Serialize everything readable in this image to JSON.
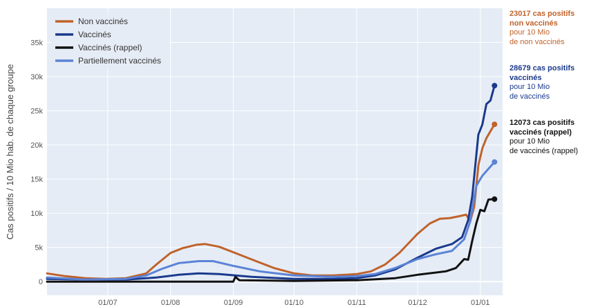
{
  "chart_data": {
    "type": "line",
    "ylabel": "Cas positifs / 10 Mio hab. de chaque groupe",
    "ylim": [
      -2000,
      40000
    ],
    "yticks": [
      {
        "value": 0,
        "label": "0"
      },
      {
        "value": 5000,
        "label": "5k"
      },
      {
        "value": 10000,
        "label": "10k"
      },
      {
        "value": 15000,
        "label": "15k"
      },
      {
        "value": 20000,
        "label": "20k"
      },
      {
        "value": 25000,
        "label": "25k"
      },
      {
        "value": 30000,
        "label": "30k"
      },
      {
        "value": 35000,
        "label": "35k"
      }
    ],
    "xlim": [
      "2021-06-01",
      "2022-01-12"
    ],
    "xticks": [
      {
        "value": "2021-07-01",
        "label": "01/07"
      },
      {
        "value": "2021-08-01",
        "label": "01/08"
      },
      {
        "value": "2021-09-01",
        "label": "01/09"
      },
      {
        "value": "2021-10-01",
        "label": "01/10"
      },
      {
        "value": "2021-11-01",
        "label": "01/11"
      },
      {
        "value": "2021-12-01",
        "label": "01/12"
      },
      {
        "value": "2022-01-01",
        "label": "01/01"
      }
    ],
    "grid": true,
    "legend_position": "top-left",
    "background": "#e5ecf6",
    "series": [
      {
        "name": "Non vaccinés",
        "color": "#c0622a",
        "points": [
          [
            "2021-06-01",
            1200
          ],
          [
            "2021-06-10",
            800
          ],
          [
            "2021-06-20",
            500
          ],
          [
            "2021-06-30",
            400
          ],
          [
            "2021-07-10",
            500
          ],
          [
            "2021-07-20",
            1200
          ],
          [
            "2021-07-25",
            2500
          ],
          [
            "2021-08-01",
            4200
          ],
          [
            "2021-08-07",
            4900
          ],
          [
            "2021-08-14",
            5400
          ],
          [
            "2021-08-18",
            5500
          ],
          [
            "2021-08-25",
            5100
          ],
          [
            "2021-09-01",
            4300
          ],
          [
            "2021-09-07",
            3600
          ],
          [
            "2021-09-14",
            2800
          ],
          [
            "2021-09-21",
            2000
          ],
          [
            "2021-10-01",
            1200
          ],
          [
            "2021-10-10",
            900
          ],
          [
            "2021-10-20",
            900
          ],
          [
            "2021-11-01",
            1100
          ],
          [
            "2021-11-08",
            1500
          ],
          [
            "2021-11-15",
            2500
          ],
          [
            "2021-11-22",
            4200
          ],
          [
            "2021-12-01",
            7000
          ],
          [
            "2021-12-07",
            8500
          ],
          [
            "2021-12-12",
            9200
          ],
          [
            "2021-12-17",
            9300
          ],
          [
            "2021-12-22",
            9600
          ],
          [
            "2021-12-25",
            9800
          ],
          [
            "2021-12-27",
            8800
          ],
          [
            "2021-12-29",
            11000
          ],
          [
            "2021-12-31",
            17000
          ],
          [
            "2022-01-02",
            19500
          ],
          [
            "2022-01-04",
            21000
          ],
          [
            "2022-01-06",
            22000
          ],
          [
            "2022-01-08",
            23017
          ]
        ]
      },
      {
        "name": "Vaccinés",
        "color": "#1a3a8c",
        "points": [
          [
            "2021-06-01",
            400
          ],
          [
            "2021-06-20",
            300
          ],
          [
            "2021-07-10",
            300
          ],
          [
            "2021-07-25",
            600
          ],
          [
            "2021-08-05",
            1000
          ],
          [
            "2021-08-15",
            1200
          ],
          [
            "2021-08-25",
            1100
          ],
          [
            "2021-09-10",
            700
          ],
          [
            "2021-10-01",
            400
          ],
          [
            "2021-10-20",
            400
          ],
          [
            "2021-11-01",
            500
          ],
          [
            "2021-11-10",
            900
          ],
          [
            "2021-11-20",
            1800
          ],
          [
            "2021-12-01",
            3500
          ],
          [
            "2021-12-10",
            4800
          ],
          [
            "2021-12-18",
            5500
          ],
          [
            "2021-12-23",
            6500
          ],
          [
            "2021-12-26",
            9000
          ],
          [
            "2021-12-28",
            12500
          ],
          [
            "2021-12-31",
            21500
          ],
          [
            "2022-01-02",
            23000
          ],
          [
            "2022-01-04",
            26000
          ],
          [
            "2022-01-06",
            26500
          ],
          [
            "2022-01-08",
            28679
          ]
        ]
      },
      {
        "name": "Vaccinés (rappel)",
        "color": "#111111",
        "points": [
          [
            "2021-06-01",
            0
          ],
          [
            "2021-07-01",
            0
          ],
          [
            "2021-08-01",
            0
          ],
          [
            "2021-09-01",
            0
          ],
          [
            "2021-09-02",
            700
          ],
          [
            "2021-09-04",
            200
          ],
          [
            "2021-10-01",
            100
          ],
          [
            "2021-11-01",
            200
          ],
          [
            "2021-11-20",
            500
          ],
          [
            "2021-12-01",
            1000
          ],
          [
            "2021-12-15",
            1500
          ],
          [
            "2021-12-20",
            2000
          ],
          [
            "2021-12-24",
            3300
          ],
          [
            "2021-12-26",
            3200
          ],
          [
            "2021-12-28",
            6000
          ],
          [
            "2021-12-30",
            8500
          ],
          [
            "2022-01-01",
            10500
          ],
          [
            "2022-01-03",
            10300
          ],
          [
            "2022-01-05",
            12000
          ],
          [
            "2022-01-08",
            12073
          ]
        ]
      },
      {
        "name": "Partiellement vaccinés",
        "color": "#5b83d6",
        "points": [
          [
            "2021-06-01",
            600
          ],
          [
            "2021-06-20",
            300
          ],
          [
            "2021-07-10",
            400
          ],
          [
            "2021-07-20",
            900
          ],
          [
            "2021-07-28",
            1900
          ],
          [
            "2021-08-05",
            2700
          ],
          [
            "2021-08-15",
            3000
          ],
          [
            "2021-08-22",
            3000
          ],
          [
            "2021-09-01",
            2300
          ],
          [
            "2021-09-14",
            1500
          ],
          [
            "2021-10-01",
            900
          ],
          [
            "2021-10-20",
            700
          ],
          [
            "2021-11-01",
            800
          ],
          [
            "2021-11-10",
            1100
          ],
          [
            "2021-11-20",
            2000
          ],
          [
            "2021-12-01",
            3300
          ],
          [
            "2021-12-10",
            4000
          ],
          [
            "2021-12-18",
            4500
          ],
          [
            "2021-12-24",
            6200
          ],
          [
            "2021-12-27",
            8800
          ],
          [
            "2021-12-30",
            14000
          ],
          [
            "2022-01-02",
            15500
          ],
          [
            "2022-01-05",
            16500
          ],
          [
            "2022-01-08",
            17500
          ]
        ]
      }
    ],
    "annotations": [
      {
        "color": "#c0622a",
        "bold_lines": [
          "23017 cas positifs",
          "non vaccinés"
        ],
        "lines": [
          "pour 10 Mio",
          "de non vaccinés"
        ]
      },
      {
        "color": "#1a3a8c",
        "bold_lines": [
          "28679 cas positifs",
          "vaccinés"
        ],
        "lines": [
          "pour 10 Mio",
          "de vaccinés"
        ]
      },
      {
        "color": "#111111",
        "bold_lines": [
          "12073 cas positifs",
          "vaccinés (rappel)"
        ],
        "lines": [
          "pour 10 Mio",
          "de vaccinés (rappel)"
        ]
      }
    ]
  }
}
